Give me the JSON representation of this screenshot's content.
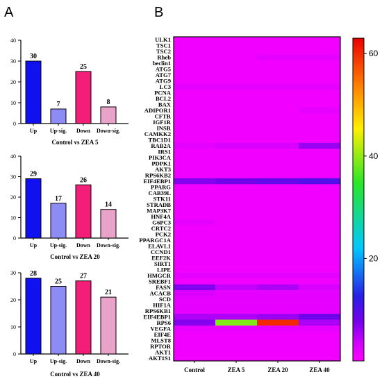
{
  "panel_labels": {
    "a": "A",
    "b": "B"
  },
  "chart_data": [
    {
      "type": "bar",
      "title": "Control vs ZEA 5",
      "categories": [
        "Up",
        "Up-sig.",
        "Down",
        "Down-sig."
      ],
      "values": [
        30,
        7,
        25,
        8
      ],
      "ylim": [
        0,
        40
      ],
      "yticks": [
        0,
        10,
        20,
        30,
        40
      ],
      "colors": [
        "#1010f0",
        "#8c8cf4",
        "#f21e78",
        "#e9a2c8"
      ]
    },
    {
      "type": "bar",
      "title": "Control vs ZEA 20",
      "categories": [
        "Up",
        "Up-sig.",
        "Down",
        "Down-sig."
      ],
      "values": [
        29,
        17,
        26,
        14
      ],
      "ylim": [
        0,
        40
      ],
      "yticks": [
        0,
        10,
        20,
        30,
        40
      ],
      "colors": [
        "#1010f0",
        "#8c8cf4",
        "#f21e78",
        "#e9a2c8"
      ]
    },
    {
      "type": "bar",
      "title": "Control vs ZEA 40",
      "categories": [
        "Up",
        "Up-sig.",
        "Down",
        "Down-sig."
      ],
      "values": [
        28,
        25,
        27,
        21
      ],
      "ylim": [
        0,
        30
      ],
      "yticks": [
        0,
        10,
        20,
        30
      ],
      "colors": [
        "#1010f0",
        "#8c8cf4",
        "#f21e78",
        "#e9a2c8"
      ]
    },
    {
      "type": "heatmap",
      "columns": [
        "Control",
        "ZEA 5",
        "ZEA 20",
        "ZEA 40"
      ],
      "rows": [
        "ULK1",
        "TSC1",
        "TSC2",
        "Rheb",
        "beclin1",
        "ATG5",
        "ATG7",
        "ATG9",
        "LC3",
        "PCNA",
        "BCL2",
        "BAX",
        "ADIPOR1",
        "CFTR",
        "IGF1R",
        "INSR",
        "CAMKK2",
        "TBC1D1",
        "RAB2A",
        "IRS1",
        "PIK3CA",
        "PDPK1",
        "AKT3",
        "RPS6KB2",
        "EIF4EBP1",
        "PPARG",
        "CAB39L",
        "STK11",
        "STRADB",
        "MAP3K7",
        "HNF4A",
        "G6PC3",
        "CRTC2",
        "PCK2",
        "PPARGC1A",
        "ELAVL1",
        "CCND1",
        "EEF2K",
        "SIRT1",
        "LIPE",
        "HMGCR",
        "SREBF1",
        "FASN",
        "ACACB",
        "SCD",
        "HIF1A",
        "RPS6KB1",
        "EIF4EBP1",
        "RPS6",
        "VEGFA",
        "EIF4E",
        "MLST8",
        "RPTOR",
        "AKT1",
        "AKT1S1"
      ],
      "values": [
        [
          1,
          1,
          1,
          1
        ],
        [
          1,
          1,
          1,
          1
        ],
        [
          1,
          1,
          1,
          1
        ],
        [
          1,
          1,
          2,
          2
        ],
        [
          1,
          1,
          1,
          1
        ],
        [
          1,
          1,
          1,
          1
        ],
        [
          1,
          1,
          1,
          1
        ],
        [
          1,
          1,
          1,
          1
        ],
        [
          2,
          2,
          2,
          2
        ],
        [
          1,
          1,
          1,
          1
        ],
        [
          1,
          1,
          1,
          1
        ],
        [
          1,
          1,
          1,
          1
        ],
        [
          1,
          1,
          1,
          2
        ],
        [
          1,
          1,
          1,
          1
        ],
        [
          1,
          1,
          1,
          1
        ],
        [
          1,
          1,
          1,
          1
        ],
        [
          1,
          1,
          1,
          1
        ],
        [
          1,
          1,
          1,
          1
        ],
        [
          2,
          3,
          3,
          6
        ],
        [
          1,
          1,
          1,
          1
        ],
        [
          1,
          1,
          1,
          1
        ],
        [
          1,
          1,
          1,
          1
        ],
        [
          1,
          1,
          1,
          1
        ],
        [
          1,
          1,
          1,
          1
        ],
        [
          7,
          8,
          9,
          10
        ],
        [
          1,
          1,
          1,
          1
        ],
        [
          1,
          1,
          1,
          1
        ],
        [
          1,
          1,
          1,
          1
        ],
        [
          1,
          1,
          1,
          1
        ],
        [
          1,
          1,
          1,
          1
        ],
        [
          1,
          1,
          1,
          1
        ],
        [
          2,
          1,
          1,
          1
        ],
        [
          1,
          1,
          1,
          1
        ],
        [
          1,
          1,
          1,
          1
        ],
        [
          1,
          1,
          1,
          1
        ],
        [
          1,
          1,
          1,
          1
        ],
        [
          1,
          1,
          1,
          1
        ],
        [
          1,
          1,
          1,
          1
        ],
        [
          1,
          1,
          1,
          1
        ],
        [
          1,
          1,
          1,
          1
        ],
        [
          2,
          2,
          2,
          2
        ],
        [
          1,
          1,
          1,
          1
        ],
        [
          7,
          4,
          5,
          3
        ],
        [
          3,
          2,
          2,
          2
        ],
        [
          2,
          2,
          2,
          2
        ],
        [
          2,
          2,
          2,
          2
        ],
        [
          2,
          2,
          2,
          2
        ],
        [
          5,
          5,
          6,
          8
        ],
        [
          7,
          39,
          60,
          5
        ],
        [
          2,
          2,
          2,
          2
        ],
        [
          1,
          1,
          1,
          1
        ],
        [
          1,
          1,
          1,
          1
        ],
        [
          1,
          1,
          1,
          1
        ],
        [
          1,
          1,
          1,
          1
        ],
        [
          1,
          1,
          1,
          1
        ]
      ],
      "colorbar": {
        "range": [
          0,
          63
        ],
        "ticks": [
          20,
          40,
          60
        ]
      }
    }
  ]
}
